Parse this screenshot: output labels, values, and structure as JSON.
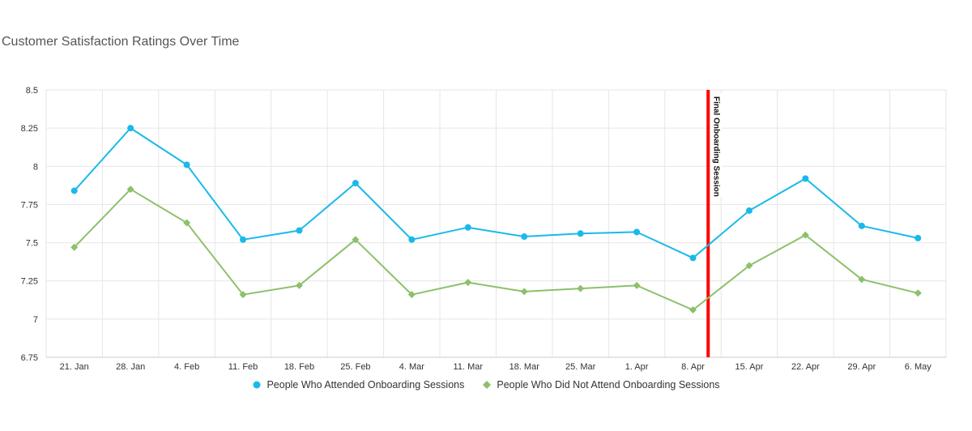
{
  "chart_data": {
    "type": "line",
    "title": "Customer Satisfaction Ratings Over Time",
    "xlabel": "",
    "ylabel": "",
    "categories": [
      "21. Jan",
      "28. Jan",
      "4. Feb",
      "11. Feb",
      "18. Feb",
      "25. Feb",
      "4. Mar",
      "11. Mar",
      "18. Mar",
      "25. Mar",
      "1. Apr",
      "8. Apr",
      "15. Apr",
      "22. Apr",
      "29. Apr",
      "6. May"
    ],
    "ylim": [
      6.75,
      8.5
    ],
    "yticks": [
      "6.75",
      "7",
      "7.25",
      "7.5",
      "7.75",
      "8",
      "8.25",
      "8.5"
    ],
    "grid": true,
    "legend_position": "bottom-center",
    "series": [
      {
        "name": "People Who Attended Onboarding Sessions",
        "color": "#1ab9ea",
        "marker": "circle",
        "values": [
          7.84,
          8.25,
          8.01,
          7.52,
          7.58,
          7.89,
          7.52,
          7.6,
          7.54,
          7.56,
          7.57,
          7.4,
          7.71,
          7.92,
          7.61,
          7.53
        ]
      },
      {
        "name": "People Who Did Not Attend Onboarding Sessions",
        "color": "#8dc06b",
        "marker": "diamond",
        "values": [
          7.47,
          7.85,
          7.63,
          7.16,
          7.22,
          7.52,
          7.16,
          7.24,
          7.18,
          7.2,
          7.22,
          7.06,
          7.35,
          7.55,
          7.26,
          7.17
        ]
      }
    ],
    "annotation": {
      "label": "Final Onboarding Session",
      "x": "8. Apr",
      "offset_fraction": 0.27,
      "color": "#ff0000"
    }
  }
}
